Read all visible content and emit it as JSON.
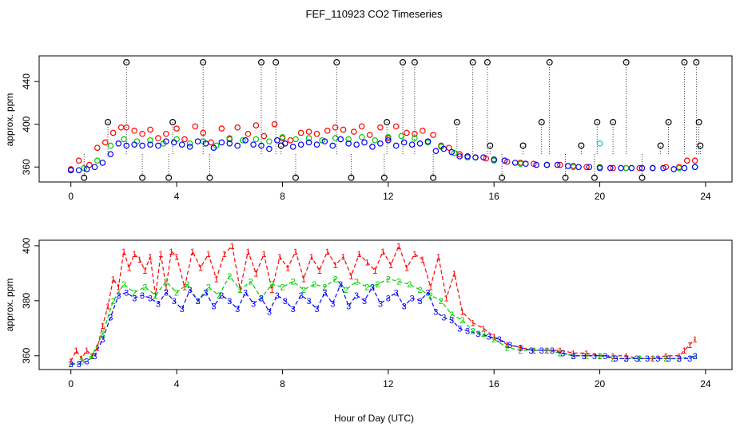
{
  "title": "FEF_110923  CO2 Timeseries",
  "xlabel": "Hour of Day (UTC)",
  "colors": {
    "series1": "#ff0000",
    "series2": "#00cc00",
    "series3": "#0000ff",
    "reference": "#000000",
    "highlight": "#00cccc"
  },
  "chart_data": [
    {
      "type": "scatter",
      "title": "FEF_110923  CO2 Timeseries",
      "xlabel": "",
      "ylabel": "approx. ppm",
      "xlim": [
        -1.2,
        25
      ],
      "ylim": [
        346,
        464
      ],
      "xticks": [
        0,
        4,
        8,
        12,
        16,
        20,
        24
      ],
      "yticks": [
        360,
        400,
        440
      ],
      "marker": "open-circle",
      "series": [
        {
          "key": "s1",
          "color": "#ff0000",
          "x": [
            0.0,
            0.3,
            0.7,
            1.0,
            1.3,
            1.6,
            1.9,
            2.1,
            2.4,
            2.7,
            3.0,
            3.3,
            3.6,
            4.0,
            4.3,
            4.7,
            5.0,
            5.3,
            5.7,
            6.0,
            6.3,
            6.7,
            7.0,
            7.3,
            7.7,
            8.0,
            8.3,
            8.7,
            9.0,
            9.3,
            9.7,
            10.0,
            10.3,
            10.7,
            11.0,
            11.3,
            11.7,
            12.0,
            12.3,
            12.7,
            13.0,
            13.3,
            13.7,
            14.0,
            14.3,
            14.7,
            15.0,
            15.3,
            15.7,
            16.0,
            16.5,
            17.0,
            17.5,
            18.0,
            18.5,
            19.0,
            19.5,
            20.0,
            20.5,
            21.0,
            21.5,
            22.0,
            22.5,
            23.0,
            23.3,
            23.6
          ],
          "y": [
            358,
            366,
            362,
            378,
            383,
            392,
            397,
            397,
            394,
            391,
            395,
            387,
            391,
            396,
            386,
            398,
            392,
            383,
            396,
            386,
            397,
            391,
            399,
            389,
            400,
            387,
            385,
            392,
            393,
            391,
            394,
            397,
            395,
            393,
            398,
            390,
            397,
            387,
            398,
            392,
            391,
            394,
            390,
            380,
            378,
            372,
            370,
            369,
            368,
            367,
            365,
            364,
            363,
            362,
            362,
            361,
            360,
            360,
            359,
            359,
            359,
            359,
            360,
            360,
            366,
            366
          ]
        },
        {
          "key": "s2",
          "color": "#00cc00",
          "x": [
            0.0,
            0.5,
            1.0,
            1.5,
            2.0,
            2.5,
            3.0,
            3.5,
            4.0,
            4.5,
            5.0,
            5.5,
            6.0,
            6.5,
            7.0,
            7.5,
            8.0,
            8.5,
            9.0,
            9.5,
            10.0,
            10.5,
            11.0,
            11.5,
            12.0,
            12.5,
            13.0,
            13.5,
            14.0,
            14.5,
            15.0,
            16.0,
            17.0,
            18.0,
            19.0,
            20.0,
            21.0,
            22.0,
            23.0,
            23.6
          ],
          "y": [
            357,
            359,
            366,
            380,
            386,
            384,
            385,
            382,
            386,
            382,
            384,
            380,
            387,
            385,
            386,
            384,
            388,
            386,
            387,
            385,
            387,
            386,
            388,
            385,
            388,
            389,
            387,
            383,
            379,
            373,
            369,
            366,
            363,
            362,
            360,
            360,
            359,
            359,
            359,
            360
          ]
        },
        {
          "key": "s3",
          "color": "#0000ff",
          "x": [
            0.0,
            0.3,
            0.6,
            0.9,
            1.2,
            1.5,
            1.8,
            2.1,
            2.4,
            2.7,
            3.0,
            3.3,
            3.6,
            3.9,
            4.2,
            4.5,
            4.8,
            5.1,
            5.4,
            5.7,
            6.0,
            6.3,
            6.6,
            6.9,
            7.2,
            7.5,
            7.8,
            8.1,
            8.4,
            8.7,
            9.0,
            9.3,
            9.6,
            9.9,
            10.2,
            10.5,
            10.8,
            11.1,
            11.4,
            11.7,
            12.0,
            12.3,
            12.6,
            12.9,
            13.2,
            13.5,
            13.8,
            14.1,
            14.4,
            14.7,
            15.0,
            15.3,
            15.6,
            16.0,
            16.4,
            16.8,
            17.2,
            17.6,
            18.0,
            18.4,
            18.8,
            19.2,
            19.6,
            20.0,
            20.4,
            20.8,
            21.2,
            21.6,
            22.0,
            22.4,
            22.8,
            23.2,
            23.6
          ],
          "y": [
            357,
            357,
            358,
            360,
            364,
            372,
            382,
            380,
            381,
            380,
            381,
            380,
            384,
            383,
            381,
            379,
            384,
            382,
            378,
            383,
            382,
            380,
            385,
            381,
            380,
            377,
            385,
            382,
            379,
            381,
            383,
            381,
            384,
            380,
            386,
            382,
            381,
            383,
            379,
            382,
            385,
            380,
            383,
            381,
            382,
            384,
            375,
            377,
            374,
            370,
            370,
            369,
            369,
            367,
            366,
            364,
            363,
            362,
            362,
            362,
            361,
            360,
            360,
            359,
            359,
            359,
            359,
            359,
            359,
            359,
            358,
            359,
            360
          ]
        },
        {
          "key": "ref",
          "color": "#000000",
          "x": [
            0.5,
            1.4,
            2.1,
            2.7,
            3.7,
            3.85,
            5.0,
            5.25,
            7.2,
            7.75,
            7.95,
            8.5,
            10.05,
            10.6,
            11.85,
            11.95,
            12.55,
            13.0,
            13.7,
            14.6,
            15.2,
            15.75,
            15.85,
            16.3,
            17.1,
            17.8,
            18.1,
            18.7,
            19.3,
            19.8,
            19.9,
            20.5,
            21.0,
            21.6,
            22.3,
            22.6,
            23.2,
            23.65,
            23.75,
            23.8
          ],
          "y": [
            350,
            402,
            458,
            350,
            350,
            402,
            458,
            350,
            458,
            458,
            380,
            350,
            458,
            350,
            350,
            402,
            458,
            458,
            350,
            402,
            458,
            458,
            380,
            350,
            380,
            402,
            458,
            350,
            380,
            350,
            402,
            402,
            458,
            350,
            380,
            402,
            458,
            458,
            402,
            380
          ]
        },
        {
          "key": "cyan",
          "color": "#00cccc",
          "x": [
            20.0
          ],
          "y": [
            382
          ]
        }
      ]
    },
    {
      "type": "line",
      "title": "",
      "xlabel": "Hour of Day (UTC)",
      "ylabel": "approx. ppm",
      "xlim": [
        -1.2,
        25
      ],
      "ylim": [
        355,
        402
      ],
      "xticks": [
        0,
        4,
        8,
        12,
        16,
        20,
        24
      ],
      "yticks": [
        360,
        380,
        400
      ],
      "marker": "series-number",
      "series": [
        {
          "key": "s1",
          "marker": "1",
          "color": "#ff0000",
          "x": [
            0.0,
            0.2,
            0.4,
            0.6,
            0.8,
            1.0,
            1.2,
            1.4,
            1.6,
            1.8,
            2.0,
            2.2,
            2.4,
            2.6,
            2.8,
            3.0,
            3.2,
            3.4,
            3.6,
            3.8,
            4.0,
            4.3,
            4.6,
            4.9,
            5.2,
            5.5,
            5.8,
            6.1,
            6.4,
            6.7,
            7.0,
            7.3,
            7.6,
            7.9,
            8.2,
            8.5,
            8.8,
            9.1,
            9.4,
            9.7,
            10.0,
            10.3,
            10.6,
            10.9,
            11.2,
            11.5,
            11.8,
            12.1,
            12.4,
            12.7,
            13.0,
            13.3,
            13.6,
            13.9,
            14.2,
            14.5,
            14.8,
            15.2,
            15.6,
            16.0,
            16.5,
            17.0,
            17.5,
            18.0,
            18.5,
            19.0,
            19.5,
            20.0,
            20.5,
            21.0,
            21.5,
            22.0,
            22.5,
            23.0,
            23.2,
            23.4,
            23.6
          ],
          "y": [
            358,
            362,
            359,
            362,
            360,
            363,
            371,
            378,
            388,
            385,
            398,
            392,
            397,
            395,
            391,
            396,
            382,
            397,
            385,
            398,
            396,
            385,
            398,
            392,
            397,
            388,
            397,
            400,
            384,
            398,
            390,
            397,
            384,
            396,
            392,
            398,
            388,
            396,
            391,
            398,
            393,
            396,
            389,
            397,
            394,
            391,
            398,
            393,
            400,
            392,
            397,
            395,
            385,
            396,
            381,
            390,
            376,
            372,
            370,
            367,
            364,
            363,
            362,
            362,
            362,
            361,
            361,
            360,
            360,
            360,
            359,
            359,
            360,
            360,
            362,
            364,
            366
          ]
        },
        {
          "key": "s2",
          "marker": "2",
          "color": "#00cc00",
          "x": [
            0.0,
            0.4,
            0.8,
            1.2,
            1.6,
            2.0,
            2.4,
            2.8,
            3.2,
            3.6,
            4.0,
            4.4,
            4.8,
            5.2,
            5.6,
            6.0,
            6.4,
            6.8,
            7.2,
            7.6,
            8.0,
            8.4,
            8.8,
            9.2,
            9.6,
            10.0,
            10.4,
            10.8,
            11.2,
            11.6,
            12.0,
            12.4,
            12.8,
            13.2,
            13.6,
            14.0,
            14.4,
            14.8,
            15.2,
            15.6,
            16.0,
            16.5,
            17.0,
            17.5,
            18.0,
            18.5,
            19.0,
            19.5,
            20.0,
            20.5,
            21.0,
            21.5,
            22.0,
            22.5,
            23.0,
            23.6
          ],
          "y": [
            357,
            358,
            360,
            368,
            380,
            386,
            383,
            385,
            382,
            387,
            383,
            386,
            380,
            385,
            382,
            389,
            384,
            387,
            381,
            386,
            385,
            387,
            384,
            386,
            385,
            388,
            384,
            387,
            385,
            386,
            388,
            387,
            386,
            384,
            382,
            380,
            375,
            373,
            369,
            368,
            366,
            363,
            362,
            362,
            362,
            361,
            360,
            360,
            360,
            359,
            359,
            359,
            359,
            359,
            359,
            360
          ]
        },
        {
          "key": "s3",
          "marker": "3",
          "color": "#0000ff",
          "x": [
            0.0,
            0.3,
            0.6,
            0.9,
            1.2,
            1.5,
            1.8,
            2.1,
            2.4,
            2.7,
            3.0,
            3.3,
            3.6,
            3.9,
            4.2,
            4.5,
            4.8,
            5.1,
            5.4,
            5.7,
            6.0,
            6.3,
            6.6,
            6.9,
            7.2,
            7.5,
            7.8,
            8.1,
            8.4,
            8.7,
            9.0,
            9.3,
            9.6,
            9.9,
            10.2,
            10.5,
            10.8,
            11.1,
            11.4,
            11.7,
            12.0,
            12.3,
            12.6,
            12.9,
            13.2,
            13.5,
            13.8,
            14.1,
            14.4,
            14.7,
            15.0,
            15.4,
            15.8,
            16.2,
            16.6,
            17.0,
            17.4,
            17.8,
            18.2,
            18.6,
            19.0,
            19.4,
            19.8,
            20.2,
            20.6,
            21.0,
            21.4,
            21.8,
            22.2,
            22.6,
            23.0,
            23.4,
            23.6
          ],
          "y": [
            357,
            357,
            358,
            360,
            366,
            374,
            382,
            383,
            381,
            382,
            381,
            379,
            383,
            380,
            377,
            384,
            380,
            383,
            378,
            382,
            380,
            377,
            383,
            379,
            381,
            376,
            382,
            380,
            377,
            382,
            380,
            377,
            383,
            379,
            386,
            378,
            382,
            380,
            385,
            379,
            381,
            383,
            378,
            381,
            380,
            383,
            376,
            374,
            373,
            370,
            369,
            368,
            367,
            366,
            364,
            363,
            362,
            362,
            362,
            361,
            360,
            360,
            360,
            360,
            359,
            359,
            359,
            359,
            359,
            359,
            359,
            359,
            360
          ]
        }
      ]
    }
  ]
}
